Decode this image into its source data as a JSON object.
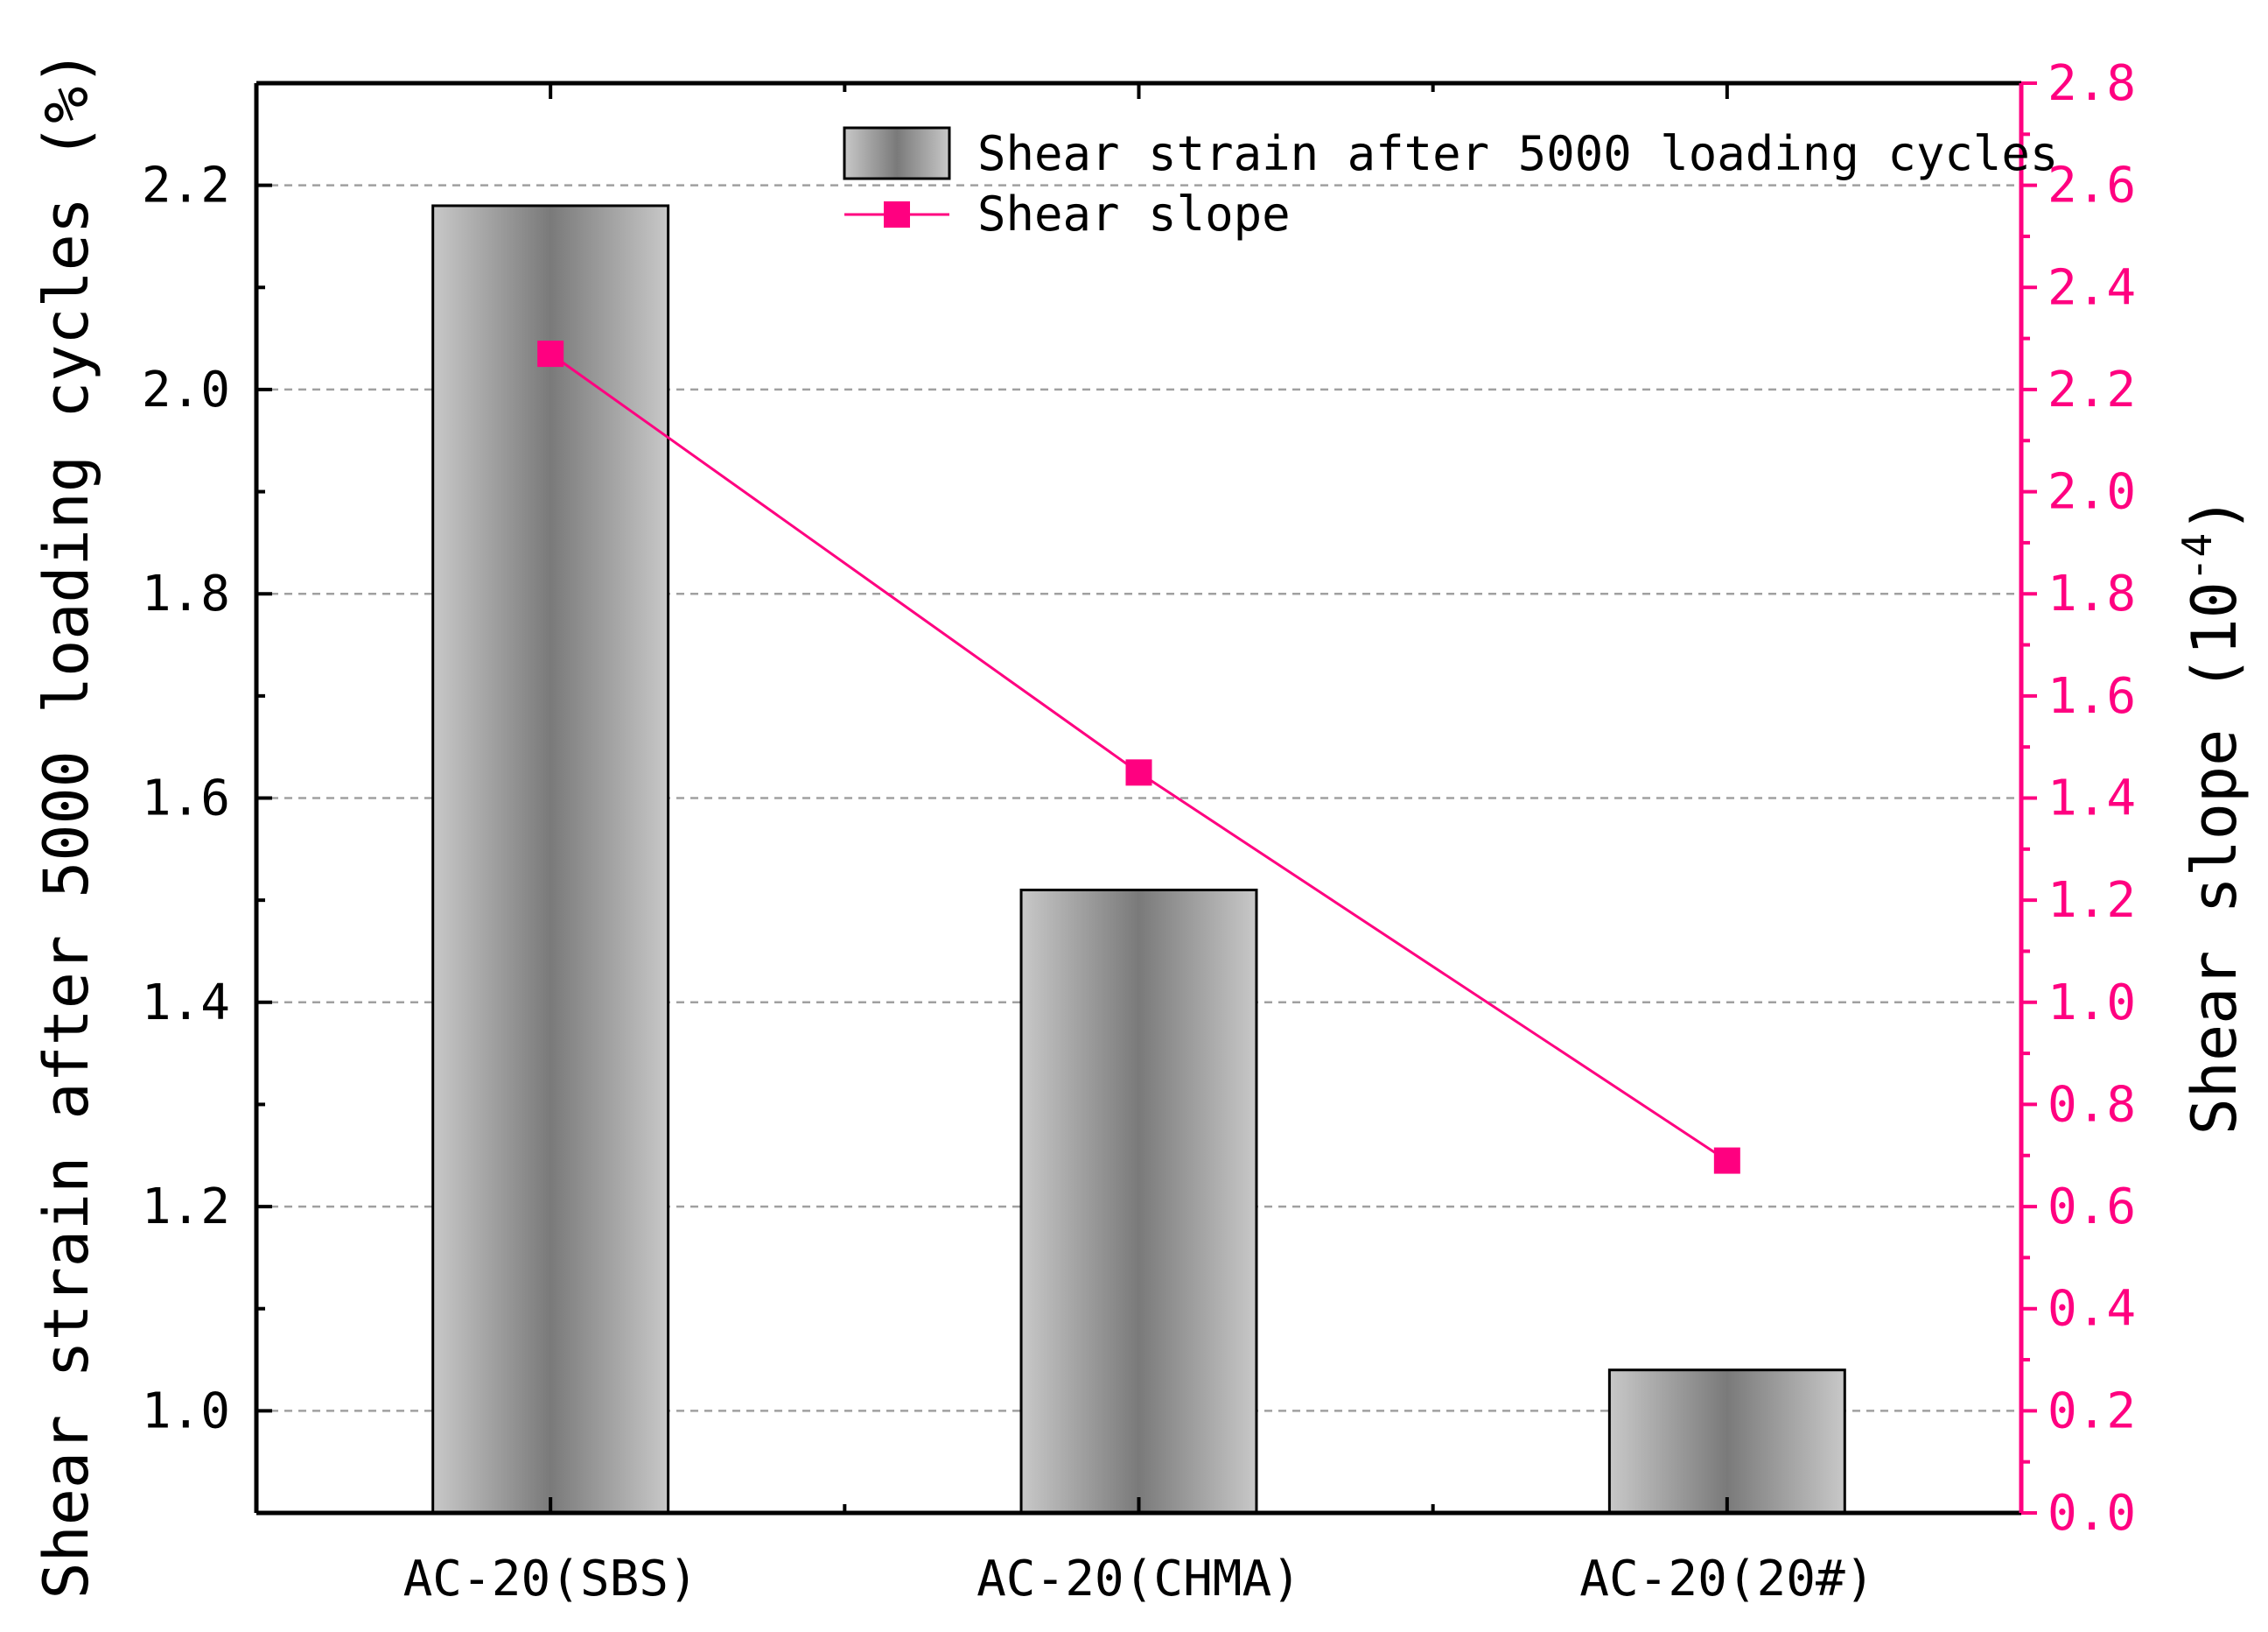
{
  "chart_data": {
    "type": "bar",
    "categories": [
      "AC-20(SBS)",
      "AC-20(CHMA)",
      "AC-20(20#)"
    ],
    "series": [
      {
        "name": "Shear strain after 5000 loading cycles",
        "type": "bar",
        "axis": "left",
        "values": [
          2.18,
          1.51,
          1.04
        ]
      },
      {
        "name": "Shear slope",
        "type": "line",
        "axis": "right",
        "values": [
          2.27,
          1.45,
          0.69
        ]
      }
    ],
    "ylabel": "Shear strain after 5000 loading cycles (%)",
    "y2label": "Shear slope (10",
    "y2label_exponent": "-4",
    "y2label_suffix": ")",
    "ylim": [
      0.9,
      2.3
    ],
    "y2lim": [
      0.0,
      2.8
    ],
    "yticks": [
      "1.0",
      "1.2",
      "1.4",
      "1.6",
      "1.8",
      "2.0",
      "2.2"
    ],
    "y2ticks": [
      "0.0",
      "0.2",
      "0.4",
      "0.6",
      "0.8",
      "1.0",
      "1.2",
      "1.4",
      "1.6",
      "1.8",
      "2.0",
      "2.2",
      "2.4",
      "2.6",
      "2.8"
    ],
    "grid": true,
    "legend_position": "top-right",
    "colors": {
      "bar_edge": "#000000",
      "bar_light": "#c8c8c8",
      "bar_dark": "#7a7a7a",
      "line": "#ff0080",
      "grid": "#a0a0a0",
      "axis": "#000000"
    }
  }
}
